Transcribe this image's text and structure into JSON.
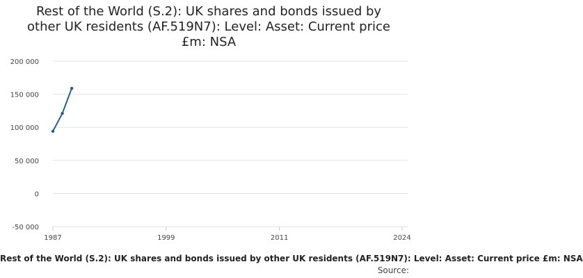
{
  "chart_data": {
    "type": "line",
    "title": "Rest of the World (S.2): UK shares and bonds issued by other UK residents (AF.519N7): Level: Asset: Current price £m: NSA",
    "xlabel": "",
    "ylabel": "",
    "x": [
      1987,
      1988,
      1989
    ],
    "series": [
      {
        "name": "Rest of the World (S.2): UK shares and bonds issued by other UK residents (AF.519N7): Level: Asset: Current price £m: NSA",
        "values": [
          94000,
          121000,
          159000
        ],
        "color": "#206095"
      }
    ],
    "xlim": [
      1987,
      2024
    ],
    "ylim": [
      -50000,
      200000
    ],
    "x_ticks": [
      1987,
      1999,
      2011,
      2024
    ],
    "y_ticks": [
      {
        "value": 200000,
        "label": "200 000"
      },
      {
        "value": 150000,
        "label": "150 000"
      },
      {
        "value": 100000,
        "label": "100 000"
      },
      {
        "value": 50000,
        "label": "50 000"
      },
      {
        "value": 0,
        "label": "0"
      },
      {
        "value": -50000,
        "label": "-50 000"
      }
    ],
    "grid": true,
    "legend_position": "bottom",
    "source_label": "Source:"
  }
}
